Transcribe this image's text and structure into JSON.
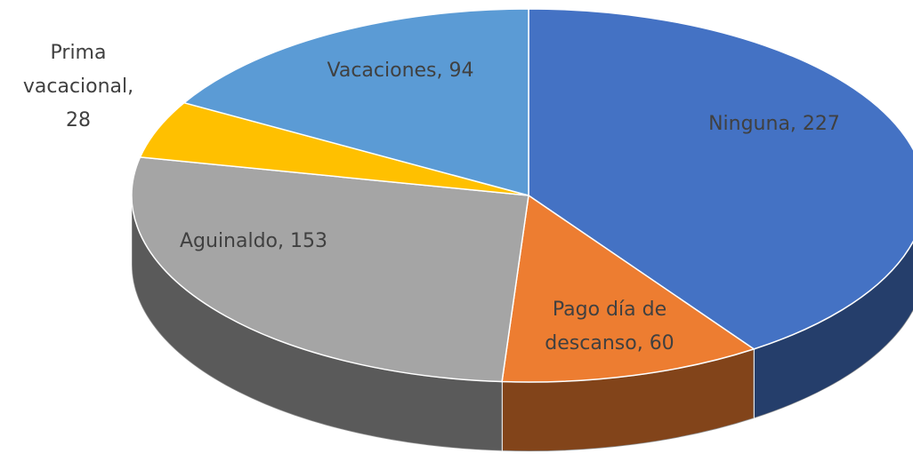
{
  "chart_data": {
    "type": "pie",
    "values": [
      227,
      60,
      153,
      28,
      94
    ],
    "value_labels": [
      "Ninguna, 227",
      "Pago día de\ndescanso, 60",
      "Aguinaldo, 153",
      "Prima\nvacacional,\n28",
      "Vacaciones, 94"
    ],
    "colors": [
      "#4472c4",
      "#ed7d31",
      "#a5a5a5",
      "#ffc000",
      "#5b9bd5"
    ]
  }
}
